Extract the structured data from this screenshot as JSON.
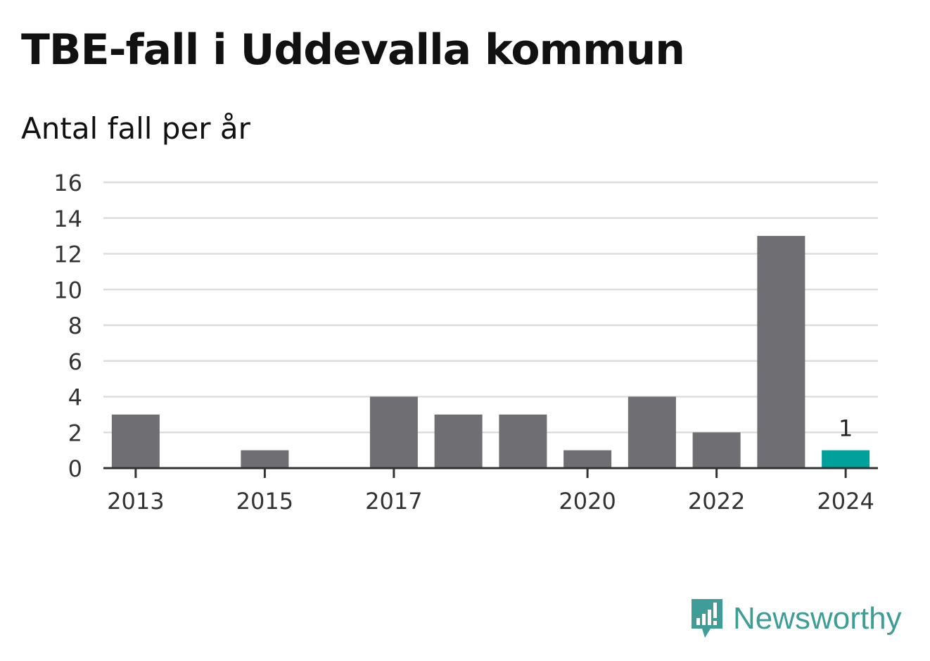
{
  "chart_data": {
    "type": "bar",
    "title": "TBE-fall i Uddevalla kommun",
    "subtitle": "Antal fall per år",
    "categories": [
      "2013",
      "2014",
      "2015",
      "2016",
      "2017",
      "2018",
      "2019",
      "2020",
      "2021",
      "2022",
      "2023",
      "2024"
    ],
    "values": [
      3,
      0,
      1,
      0,
      4,
      3,
      3,
      1,
      4,
      2,
      13,
      1
    ],
    "x_tick_labels": [
      "2013",
      "2015",
      "2017",
      "2020",
      "2022",
      "2024"
    ],
    "y_ticks": [
      0,
      2,
      4,
      6,
      8,
      10,
      12,
      14,
      16
    ],
    "ylim": [
      0,
      16
    ],
    "grid": true,
    "highlight_category": "2024",
    "highlight_label": "1",
    "colors": {
      "bar": "#6f6e73",
      "highlight": "#00a19a",
      "grid": "#dddddd",
      "axis": "#333333"
    }
  },
  "brand": {
    "name": "Newsworthy",
    "icon": "chart-speech-bubble-icon",
    "color": "#3f9d98"
  }
}
